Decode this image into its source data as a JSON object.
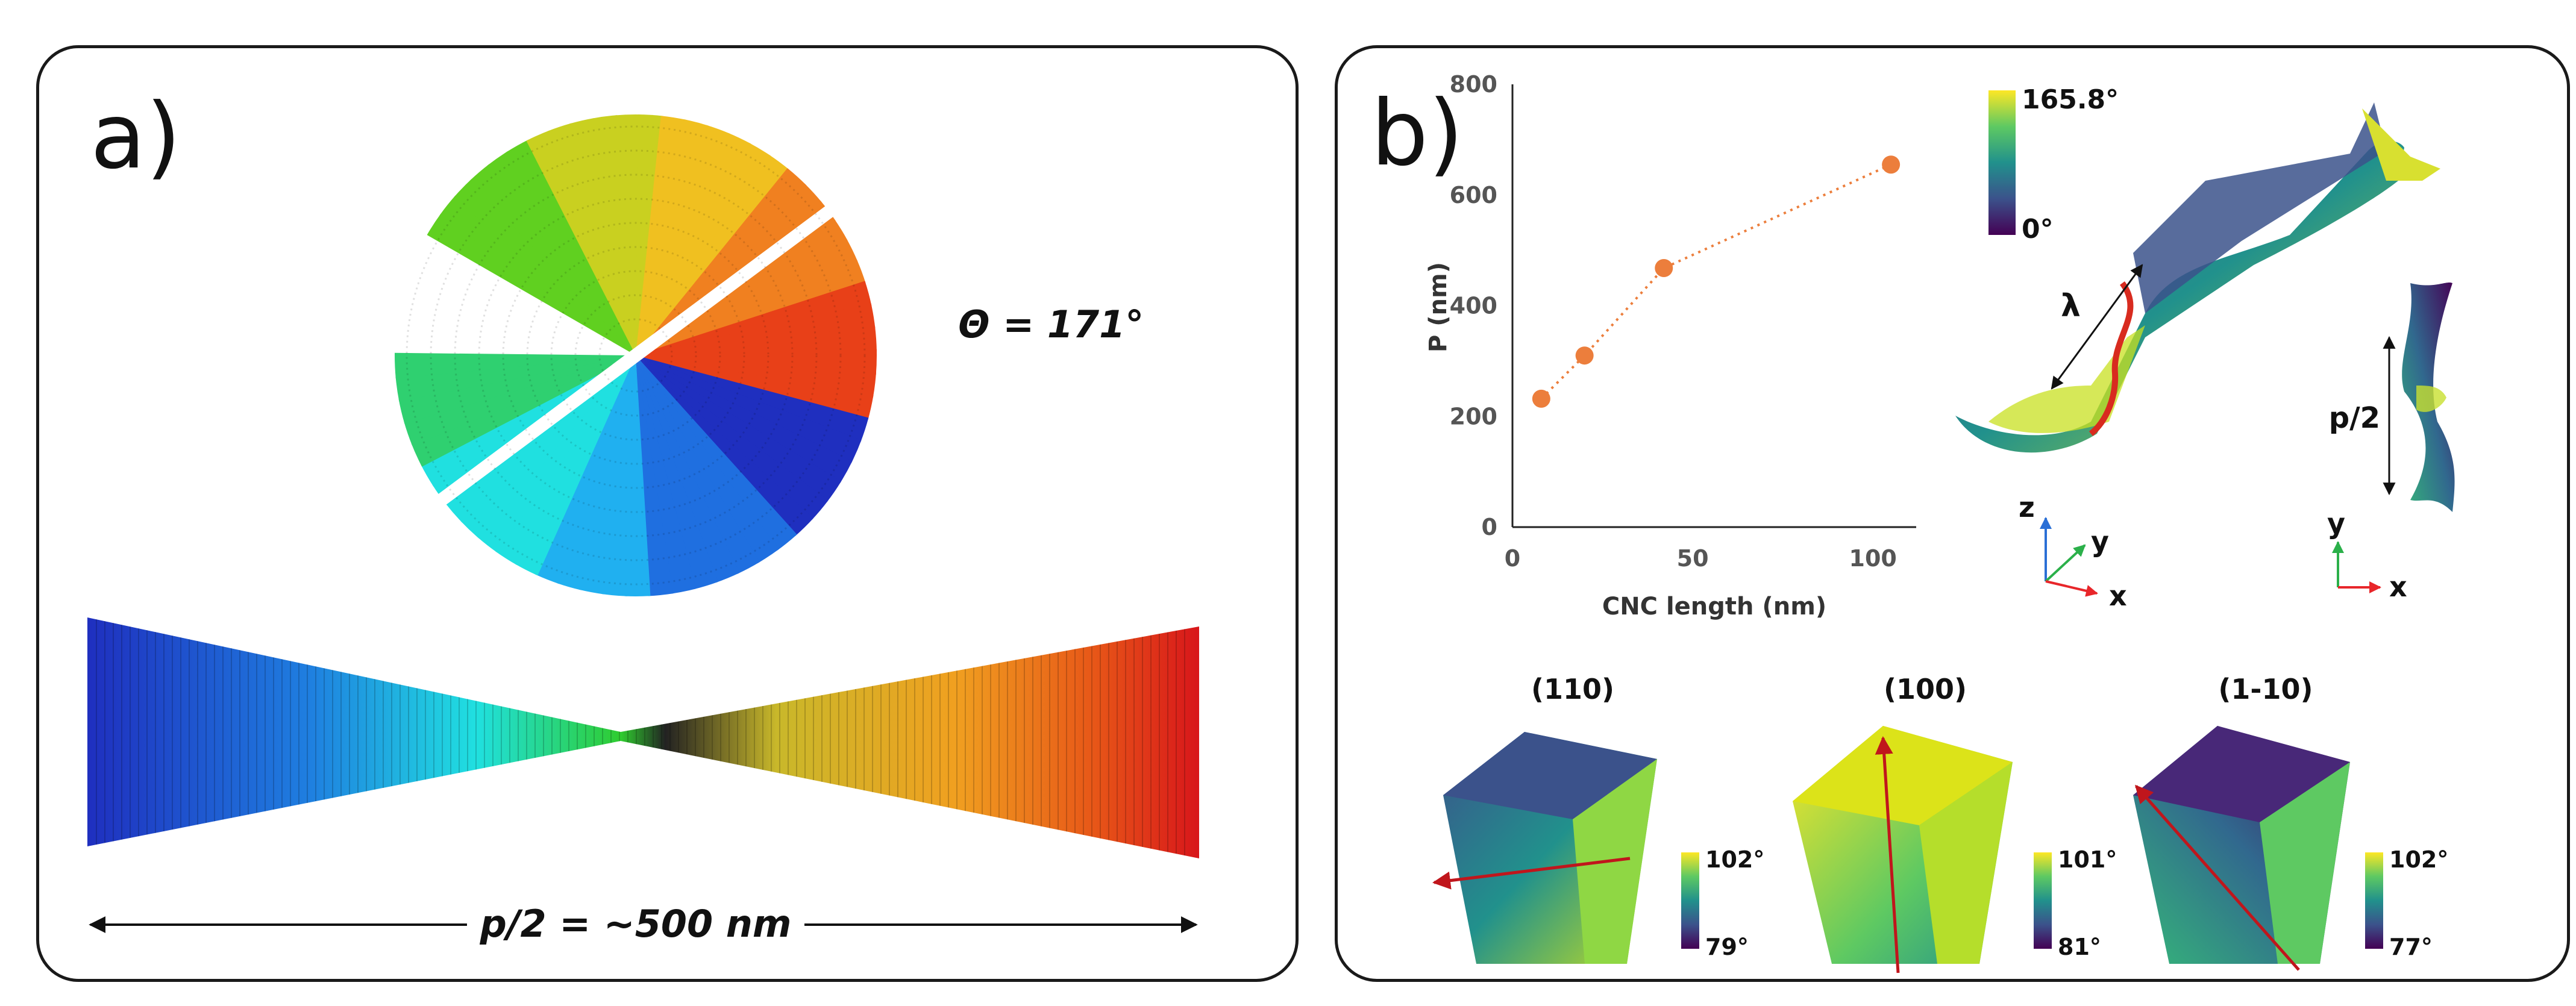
{
  "panel_a": {
    "label": "a)",
    "angle_label": "Θ = 171°",
    "length_label": "p/2 = ~500 nm"
  },
  "panel_b": {
    "label": "b)",
    "chart_data": {
      "type": "line",
      "title": "",
      "xlabel": "CNC length (nm)",
      "ylabel": "P (nm)",
      "x": [
        8,
        20,
        42,
        105
      ],
      "y": [
        232,
        310,
        468,
        655
      ],
      "xlim": [
        0,
        112
      ],
      "ylim": [
        0,
        800
      ],
      "xticks": [
        0,
        50,
        100
      ],
      "yticks": [
        0,
        200,
        400,
        600,
        800
      ],
      "grid": false,
      "marker_color": "#ec7e3c",
      "line_style": "dotted"
    },
    "colorbar_main": {
      "max": "165.8°",
      "min": "0°"
    },
    "lambda_label": "λ",
    "pitch_label": "p/2",
    "axes_3d": {
      "z": "z",
      "y": "y",
      "x": "x"
    },
    "axes_2d": {
      "y": "y",
      "x": "x"
    },
    "facets": [
      {
        "title": "(110)",
        "cb_max": "102°",
        "cb_min": "79°"
      },
      {
        "title": "(100)",
        "cb_max": "101°",
        "cb_min": "81°"
      },
      {
        "title": "(1-10)",
        "cb_max": "102°",
        "cb_min": "77°"
      }
    ],
    "colors": {
      "axis_x": "#e8262a",
      "axis_y": "#2bb04a",
      "axis_z": "#2a6fd6",
      "arrow": "#c0161c"
    }
  }
}
